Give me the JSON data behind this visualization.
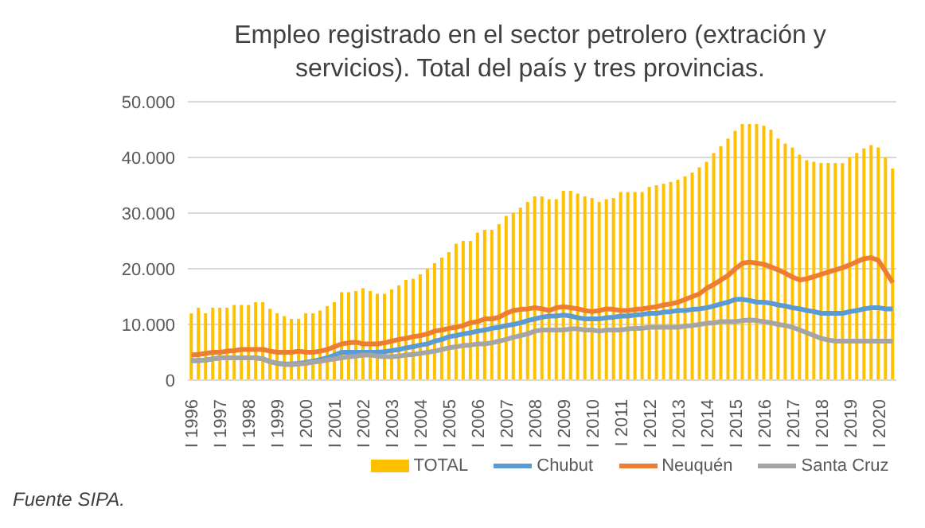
{
  "chart_data": {
    "type": "bar",
    "title": "Empleo registrado en el sector petrolero (extración y servicios). Total del país y tres provincias.",
    "categories": [
      "I 1996",
      null,
      null,
      null,
      "I 1997",
      null,
      null,
      null,
      "I 1998",
      null,
      null,
      null,
      "I 1999",
      null,
      null,
      null,
      "I 2000",
      null,
      null,
      null,
      "I 2001",
      null,
      null,
      null,
      "I 2002",
      null,
      null,
      null,
      "I 2003",
      null,
      null,
      null,
      "I 2004",
      null,
      null,
      null,
      "I 2005",
      null,
      null,
      null,
      "I 2006",
      null,
      null,
      null,
      "I 2007",
      null,
      null,
      null,
      "I 2008",
      null,
      null,
      null,
      "I 2009",
      null,
      null,
      null,
      "I 2010",
      null,
      null,
      null,
      "I 2011",
      null,
      null,
      null,
      "I 2012",
      null,
      null,
      null,
      "I 2013",
      null,
      null,
      null,
      "I 2014",
      null,
      null,
      null,
      "I 2015",
      null,
      null,
      null,
      "I 2016",
      null,
      null,
      null,
      "I 2017",
      null,
      null,
      null,
      "I 2018",
      null,
      null,
      null,
      "I 2019",
      null,
      null,
      null,
      "I 2020",
      null,
      null
    ],
    "series": [
      {
        "name": "TOTAL",
        "color": "#ffc000",
        "values": [
          12000,
          13000,
          12000,
          13000,
          13000,
          13000,
          13500,
          13500,
          13500,
          14000,
          14000,
          12800,
          12000,
          11500,
          11000,
          11000,
          12000,
          12000,
          12500,
          13300,
          14000,
          15800,
          15800,
          16000,
          16500,
          16000,
          15500,
          15500,
          16300,
          17000,
          18000,
          18200,
          19000,
          20000,
          21000,
          22000,
          23000,
          24500,
          25000,
          25000,
          26500,
          27000,
          27000,
          28000,
          29500,
          30000,
          31000,
          32000,
          33000,
          33000,
          32500,
          32500,
          34000,
          34000,
          33500,
          33000,
          32700,
          32000,
          32500,
          32700,
          33800,
          33800,
          33800,
          33800,
          34700,
          35000,
          35300,
          35600,
          36000,
          36600,
          37300,
          38200,
          39200,
          40800,
          42000,
          43400,
          44800,
          46000,
          46000,
          46000,
          45700,
          45000,
          43400,
          42500,
          41800,
          40500,
          39500,
          39200,
          39000,
          39000,
          39000,
          39000,
          40000,
          40800,
          41600,
          42200,
          41800,
          40000,
          38000
        ]
      },
      {
        "name": "Chubut",
        "type": "line",
        "color": "#5b9bd5",
        "values": [
          3500,
          3500,
          3600,
          3800,
          4000,
          4000,
          4000,
          4000,
          4000,
          4000,
          3800,
          3300,
          3000,
          2900,
          2900,
          3000,
          3200,
          3400,
          3700,
          4000,
          4500,
          5000,
          5000,
          5000,
          5000,
          5000,
          5000,
          5100,
          5300,
          5500,
          5800,
          6000,
          6300,
          6500,
          7000,
          7300,
          7800,
          8000,
          8300,
          8500,
          8800,
          9000,
          9300,
          9500,
          9800,
          10000,
          10300,
          10700,
          11000,
          11300,
          11500,
          11500,
          11700,
          11500,
          11200,
          11000,
          11000,
          11000,
          11200,
          11300,
          11500,
          11500,
          11700,
          11800,
          12000,
          12000,
          12200,
          12300,
          12500,
          12500,
          12700,
          12800,
          13000,
          13300,
          13700,
          14000,
          14500,
          14500,
          14300,
          14000,
          14000,
          13800,
          13500,
          13300,
          13000,
          12800,
          12500,
          12300,
          12000,
          12000,
          12000,
          12000,
          12300,
          12500,
          12800,
          13000,
          13000,
          12800,
          12800
        ]
      },
      {
        "name": "Neuquén",
        "type": "line",
        "color": "#ed7d31",
        "values": [
          4500,
          4600,
          4800,
          5000,
          5000,
          5200,
          5300,
          5500,
          5500,
          5500,
          5500,
          5200,
          5000,
          5000,
          5000,
          5200,
          5000,
          5000,
          5200,
          5500,
          6000,
          6500,
          6700,
          6800,
          6500,
          6500,
          6500,
          6700,
          7000,
          7300,
          7500,
          7800,
          8000,
          8300,
          8800,
          9000,
          9300,
          9500,
          9800,
          10300,
          10500,
          11000,
          11000,
          11300,
          12000,
          12500,
          12700,
          12800,
          13000,
          12800,
          12500,
          13000,
          13200,
          13000,
          12800,
          12500,
          12300,
          12500,
          12800,
          12700,
          12500,
          12500,
          12700,
          12800,
          13000,
          13200,
          13500,
          13700,
          14000,
          14500,
          15000,
          15500,
          16500,
          17200,
          18000,
          18800,
          20000,
          21000,
          21200,
          21000,
          20800,
          20300,
          19800,
          19200,
          18500,
          18000,
          18200,
          18600,
          19000,
          19400,
          19800,
          20200,
          20700,
          21300,
          21800,
          22000,
          21500,
          19500,
          17500
        ]
      },
      {
        "name": "Santa Cruz",
        "type": "line",
        "color": "#a5a5a5",
        "values": [
          3500,
          3500,
          3600,
          3800,
          4000,
          4000,
          4000,
          4000,
          4000,
          4000,
          3800,
          3300,
          3000,
          2800,
          2800,
          2900,
          3000,
          3200,
          3400,
          3600,
          3800,
          4000,
          4200,
          4300,
          4500,
          4500,
          4300,
          4200,
          4200,
          4300,
          4500,
          4600,
          4800,
          5000,
          5200,
          5500,
          5800,
          6000,
          6200,
          6300,
          6500,
          6500,
          6700,
          7000,
          7300,
          7700,
          8000,
          8300,
          8800,
          9000,
          9000,
          9000,
          9000,
          9200,
          9200,
          9000,
          9000,
          8800,
          9000,
          9000,
          9000,
          9200,
          9300,
          9300,
          9500,
          9500,
          9500,
          9500,
          9500,
          9700,
          9800,
          10000,
          10200,
          10300,
          10500,
          10500,
          10500,
          10700,
          10800,
          10700,
          10500,
          10300,
          10000,
          9800,
          9500,
          9000,
          8500,
          8000,
          7500,
          7200,
          7000,
          7000,
          7000,
          7000,
          7000,
          7000,
          7000,
          7000,
          7000
        ]
      }
    ],
    "ylim": [
      0,
      50000
    ],
    "yticks": [
      0,
      {
        "value": 10000,
        "label": "10.000"
      },
      {
        "value": 20000,
        "label": "20.000"
      },
      {
        "value": 30000,
        "label": "30.000"
      },
      {
        "value": 40000,
        "label": "40.000"
      },
      {
        "value": 50000,
        "label": "50.000"
      }
    ],
    "grid": "y",
    "legend": "bottom",
    "annotations": [
      "Fuente SIPA."
    ]
  }
}
